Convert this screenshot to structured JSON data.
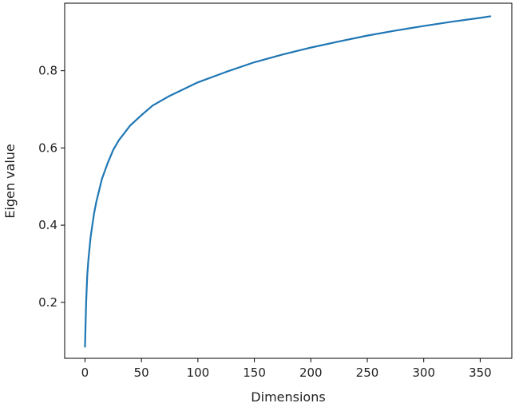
{
  "chart_data": {
    "type": "line",
    "title": "",
    "xlabel": "Dimensions",
    "ylabel": "Eigen value",
    "xlim": [
      -18,
      378
    ],
    "ylim": [
      0.055,
      0.975
    ],
    "xticks": [
      0,
      50,
      100,
      150,
      200,
      250,
      300,
      350
    ],
    "yticks": [
      0.2,
      0.4,
      0.6,
      0.8
    ],
    "xtick_labels": [
      "0",
      "50",
      "100",
      "150",
      "200",
      "250",
      "300",
      "350"
    ],
    "ytick_labels": [
      "0.2",
      "0.4",
      "0.6",
      "0.8"
    ],
    "grid": false,
    "legend": "none",
    "series": [
      {
        "color": "#1f77b4",
        "x": [
          0,
          1,
          2,
          3,
          5,
          8,
          10,
          15,
          20,
          25,
          30,
          40,
          50,
          60,
          75,
          100,
          125,
          150,
          175,
          200,
          225,
          250,
          275,
          300,
          325,
          350,
          359
        ],
        "y": [
          0.085,
          0.2,
          0.27,
          0.31,
          0.37,
          0.43,
          0.46,
          0.52,
          0.56,
          0.595,
          0.62,
          0.658,
          0.685,
          0.71,
          0.735,
          0.77,
          0.797,
          0.822,
          0.842,
          0.86,
          0.876,
          0.891,
          0.904,
          0.916,
          0.927,
          0.937,
          0.941
        ]
      }
    ]
  }
}
